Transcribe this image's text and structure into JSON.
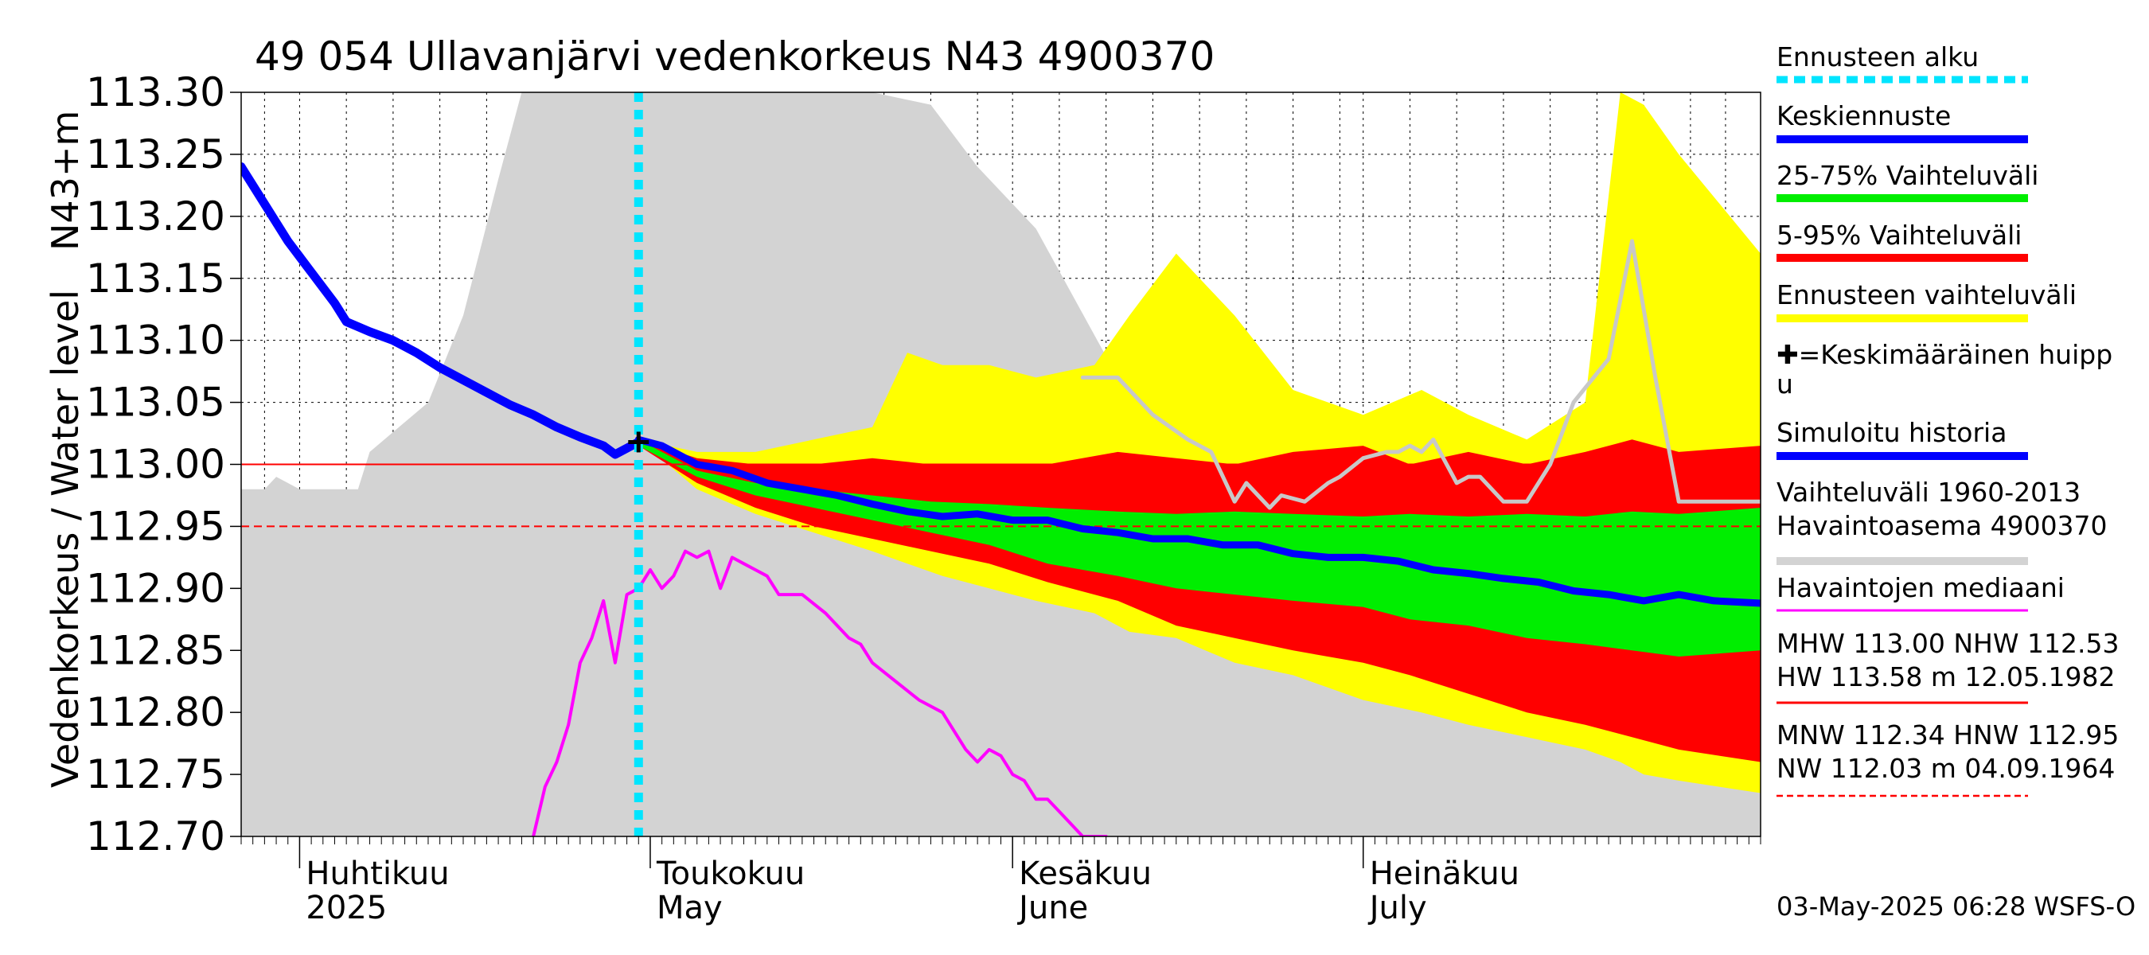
{
  "chart_data": {
    "type": "area",
    "title": "49 054 Ullavanjärvi vedenkorkeus N43 4900370",
    "ylabel": "Vedenkorkeus / Water level",
    "ylabel_unit": "N43+m",
    "ylim": [
      112.7,
      113.3
    ],
    "yticks": [
      "113.30",
      "113.25",
      "113.20",
      "113.15",
      "113.10",
      "113.05",
      "113.00",
      "112.95",
      "112.90",
      "112.85",
      "112.80",
      "112.75",
      "112.70"
    ],
    "x_start": "2025-03-27",
    "x_end": "2025-08-04",
    "months": [
      {
        "date": "2025-04-01",
        "fi": "Huhtikuu",
        "en": "2025"
      },
      {
        "date": "2025-05-01",
        "fi": "Toukokuu",
        "en": "May"
      },
      {
        "date": "2025-06-01",
        "fi": "Kesäkuu",
        "en": "June"
      },
      {
        "date": "2025-07-01",
        "fi": "Heinäkuu",
        "en": "July"
      }
    ],
    "forecast_start": "2025-04-30",
    "reference_lines": [
      {
        "name": "MHW",
        "value": 113.0,
        "style": "solid",
        "color": "#ff0000"
      },
      {
        "name": "HNW",
        "value": 112.95,
        "style": "dashed",
        "color": "#ff0000"
      }
    ],
    "mean_peak": {
      "date": "2025-04-30",
      "value": 113.018
    },
    "history_range": {
      "name": "Vaihteluväli 1960-2013 Havaintoasema 4900370",
      "color": "#d3d3d3",
      "x": [
        "2025-03-27",
        "2025-03-29",
        "2025-03-30",
        "2025-04-01",
        "2025-04-06",
        "2025-04-07",
        "2025-04-12",
        "2025-04-15",
        "2025-04-18",
        "2025-04-20",
        "2025-04-24",
        "2025-05-01",
        "2025-05-10",
        "2025-05-20",
        "2025-05-25",
        "2025-05-29",
        "2025-06-03",
        "2025-06-10",
        "2025-06-15",
        "2025-06-20",
        "2025-07-01",
        "2025-07-10",
        "2025-07-20",
        "2025-08-04"
      ],
      "upper": [
        112.98,
        112.98,
        112.99,
        112.98,
        112.98,
        113.01,
        113.05,
        113.12,
        113.23,
        113.3,
        113.3,
        113.3,
        113.3,
        113.3,
        113.29,
        113.24,
        113.19,
        113.07,
        113.02,
        112.98,
        112.94,
        112.9,
        112.85,
        112.8
      ],
      "lower": [
        112.7,
        112.7,
        112.7,
        112.7,
        112.7,
        112.7,
        112.7,
        112.7,
        112.7,
        112.7,
        112.7,
        112.7,
        112.7,
        112.7,
        112.7,
        112.7,
        112.7,
        112.7,
        112.7,
        112.7,
        112.7,
        112.7,
        112.7,
        112.7
      ]
    },
    "forecast_range": {
      "name": "Ennusteen vaihteluväli",
      "color": "#ffff00",
      "x": [
        "2025-04-30",
        "2025-05-05",
        "2025-05-10",
        "2025-05-15",
        "2025-05-20",
        "2025-05-23",
        "2025-05-26",
        "2025-05-30",
        "2025-06-03",
        "2025-06-08",
        "2025-06-11",
        "2025-06-15",
        "2025-06-20",
        "2025-06-25",
        "2025-07-01",
        "2025-07-06",
        "2025-07-10",
        "2025-07-15",
        "2025-07-20",
        "2025-07-23",
        "2025-07-25",
        "2025-07-28",
        "2025-08-04"
      ],
      "upper": [
        113.02,
        113.01,
        113.01,
        113.02,
        113.03,
        113.09,
        113.08,
        113.08,
        113.07,
        113.08,
        113.12,
        113.17,
        113.12,
        113.06,
        113.04,
        113.06,
        113.04,
        113.02,
        113.05,
        113.3,
        113.29,
        113.25,
        113.17
      ],
      "lower": [
        113.02,
        112.98,
        112.96,
        112.945,
        112.93,
        112.92,
        112.91,
        112.9,
        112.89,
        112.88,
        112.865,
        112.86,
        112.84,
        112.83,
        112.81,
        112.8,
        112.79,
        112.78,
        112.77,
        112.76,
        112.75,
        112.745,
        112.735
      ]
    },
    "band_5_95": {
      "name": "5-95% Vaihteluväli",
      "color": "#ff0000",
      "x": [
        "2025-04-30",
        "2025-05-05",
        "2025-05-10",
        "2025-05-15",
        "2025-05-20",
        "2025-05-25",
        "2025-05-30",
        "2025-06-04",
        "2025-06-10",
        "2025-06-15",
        "2025-06-20",
        "2025-06-25",
        "2025-07-01",
        "2025-07-05",
        "2025-07-10",
        "2025-07-15",
        "2025-07-20",
        "2025-07-24",
        "2025-07-28",
        "2025-08-04"
      ],
      "upper": [
        113.02,
        113.005,
        113.0,
        113.0,
        113.005,
        113.0,
        113.0,
        113.0,
        113.01,
        113.005,
        113.0,
        113.01,
        113.015,
        113.0,
        113.01,
        113.0,
        113.01,
        113.02,
        113.01,
        113.015
      ],
      "lower": [
        113.015,
        112.985,
        112.965,
        112.95,
        112.94,
        112.93,
        112.92,
        112.905,
        112.89,
        112.87,
        112.86,
        112.85,
        112.84,
        112.83,
        112.815,
        112.8,
        112.79,
        112.78,
        112.77,
        112.76
      ]
    },
    "band_25_75": {
      "name": "25-75% Vaihteluväli",
      "color": "#00ee00",
      "x": [
        "2025-04-30",
        "2025-05-05",
        "2025-05-10",
        "2025-05-15",
        "2025-05-20",
        "2025-05-25",
        "2025-05-30",
        "2025-06-04",
        "2025-06-10",
        "2025-06-15",
        "2025-06-20",
        "2025-06-25",
        "2025-07-01",
        "2025-07-05",
        "2025-07-10",
        "2025-07-15",
        "2025-07-20",
        "2025-07-24",
        "2025-07-28",
        "2025-08-04"
      ],
      "upper": [
        113.02,
        112.995,
        112.985,
        112.98,
        112.975,
        112.97,
        112.968,
        112.965,
        112.962,
        112.96,
        112.962,
        112.96,
        112.958,
        112.96,
        112.958,
        112.96,
        112.958,
        112.962,
        112.96,
        112.965
      ],
      "lower": [
        113.015,
        112.99,
        112.975,
        112.965,
        112.955,
        112.945,
        112.935,
        112.92,
        112.91,
        112.9,
        112.895,
        112.89,
        112.885,
        112.875,
        112.87,
        112.86,
        112.855,
        112.85,
        112.845,
        112.85
      ]
    },
    "mean_forecast": {
      "name": "Keskiennuste",
      "color": "#0000ff",
      "x": [
        "2025-04-30",
        "2025-05-02",
        "2025-05-05",
        "2025-05-08",
        "2025-05-11",
        "2025-05-14",
        "2025-05-17",
        "2025-05-20",
        "2025-05-23",
        "2025-05-26",
        "2025-05-29",
        "2025-06-01",
        "2025-06-04",
        "2025-06-07",
        "2025-06-10",
        "2025-06-13",
        "2025-06-16",
        "2025-06-19",
        "2025-06-22",
        "2025-06-25",
        "2025-06-28",
        "2025-07-01",
        "2025-07-04",
        "2025-07-07",
        "2025-07-10",
        "2025-07-13",
        "2025-07-16",
        "2025-07-19",
        "2025-07-22",
        "2025-07-25",
        "2025-07-28",
        "2025-07-31",
        "2025-08-04"
      ],
      "values": [
        113.02,
        113.015,
        113.0,
        112.995,
        112.985,
        112.98,
        112.975,
        112.968,
        112.962,
        112.958,
        112.96,
        112.955,
        112.955,
        112.948,
        112.945,
        112.94,
        112.94,
        112.935,
        112.935,
        112.928,
        112.925,
        112.925,
        112.922,
        112.915,
        112.912,
        112.908,
        112.905,
        112.898,
        112.895,
        112.89,
        112.895,
        112.89,
        112.888
      ]
    },
    "simulated_history": {
      "name": "Simuloitu historia",
      "color": "#0000ff",
      "x": [
        "2025-03-27",
        "2025-03-29",
        "2025-03-31",
        "2025-04-02",
        "2025-04-04",
        "2025-04-05",
        "2025-04-07",
        "2025-04-09",
        "2025-04-11",
        "2025-04-13",
        "2025-04-15",
        "2025-04-17",
        "2025-04-19",
        "2025-04-21",
        "2025-04-23",
        "2025-04-25",
        "2025-04-27",
        "2025-04-28",
        "2025-04-30"
      ],
      "values": [
        113.24,
        113.21,
        113.18,
        113.155,
        113.13,
        113.115,
        113.107,
        113.1,
        113.09,
        113.078,
        113.068,
        113.058,
        113.048,
        113.04,
        113.03,
        113.022,
        113.015,
        113.008,
        113.018
      ]
    },
    "observed_median": {
      "name": "Havaintojen mediaani",
      "color": "#ff00ff",
      "x": [
        "2025-04-21",
        "2025-04-22",
        "2025-04-23",
        "2025-04-24",
        "2025-04-25",
        "2025-04-26",
        "2025-04-27",
        "2025-04-28",
        "2025-04-29",
        "2025-04-30",
        "2025-05-01",
        "2025-05-02",
        "2025-05-03",
        "2025-05-04",
        "2025-05-05",
        "2025-05-06",
        "2025-05-07",
        "2025-05-08",
        "2025-05-09",
        "2025-05-10",
        "2025-05-11",
        "2025-05-12",
        "2025-05-14",
        "2025-05-16",
        "2025-05-17",
        "2025-05-18",
        "2025-05-19",
        "2025-05-20",
        "2025-05-22",
        "2025-05-24",
        "2025-05-26",
        "2025-05-28",
        "2025-05-29",
        "2025-05-30",
        "2025-05-31",
        "2025-06-01",
        "2025-06-02",
        "2025-06-03",
        "2025-06-04",
        "2025-06-05",
        "2025-06-07",
        "2025-06-09"
      ],
      "values": [
        112.7,
        112.74,
        112.76,
        112.79,
        112.84,
        112.86,
        112.89,
        112.84,
        112.895,
        112.9,
        112.915,
        112.9,
        112.91,
        112.93,
        112.925,
        112.93,
        112.9,
        112.925,
        112.92,
        112.915,
        112.91,
        112.895,
        112.895,
        112.88,
        112.87,
        112.86,
        112.855,
        112.84,
        112.825,
        112.81,
        112.8,
        112.77,
        112.76,
        112.77,
        112.765,
        112.75,
        112.745,
        112.73,
        112.73,
        112.72,
        112.7,
        112.7
      ]
    },
    "sim_grey_line": {
      "name": "Vaihteluväli 1960-2013 Havaintoasema 4900370",
      "color": "#c8c8c8",
      "x": [
        "2025-06-07",
        "2025-06-10",
        "2025-06-13",
        "2025-06-16",
        "2025-06-18",
        "2025-06-19",
        "2025-06-20",
        "2025-06-21",
        "2025-06-22",
        "2025-06-23",
        "2025-06-24",
        "2025-06-26",
        "2025-06-28",
        "2025-06-29",
        "2025-07-01",
        "2025-07-03",
        "2025-07-04",
        "2025-07-05",
        "2025-07-06",
        "2025-07-07",
        "2025-07-09",
        "2025-07-10",
        "2025-07-11",
        "2025-07-13",
        "2025-07-15",
        "2025-07-17",
        "2025-07-19",
        "2025-07-22",
        "2025-07-24",
        "2025-07-26",
        "2025-07-28",
        "2025-08-04"
      ],
      "values": [
        113.07,
        113.07,
        113.04,
        113.02,
        113.01,
        112.99,
        112.97,
        112.985,
        112.975,
        112.965,
        112.975,
        112.97,
        112.985,
        112.99,
        113.005,
        113.01,
        113.01,
        113.015,
        113.01,
        113.02,
        112.985,
        112.99,
        112.99,
        112.97,
        112.97,
        113.0,
        113.05,
        113.085,
        113.18,
        113.07,
        112.97,
        112.97
      ]
    },
    "legend": [
      {
        "label": "Ennusteen alku",
        "color": "#00e5ff",
        "kind": "dashed"
      },
      {
        "label": "Keskiennuste",
        "color": "#0000ff",
        "kind": "line"
      },
      {
        "label": "25-75% Vaihteluväli",
        "color": "#00ee00",
        "kind": "line"
      },
      {
        "label": "5-95% Vaihteluväli",
        "color": "#ff0000",
        "kind": "line"
      },
      {
        "label": "Ennusteen vaihteluväli",
        "color": "#ffff00",
        "kind": "line"
      },
      {
        "label": "✚=Keskimääräinen huipp",
        "label2": "u",
        "kind": "text"
      },
      {
        "label": "Simuloitu historia",
        "color": "#0000ff",
        "kind": "line"
      },
      {
        "label": "Vaihteluväli 1960-2013",
        "label2": " Havaintoasema 4900370",
        "color": "#d3d3d3",
        "kind": "line"
      },
      {
        "label": "Havaintojen mediaani",
        "color": "#ff00ff",
        "kind": "thin"
      },
      {
        "label": "MHW 113.00 NHW 112.53",
        "label2": "HW 113.58 m 12.05.1982",
        "color": "#ff0000",
        "kind": "thin"
      },
      {
        "label": "MNW 112.34 HNW 112.95",
        "label2": "NW 112.03 m 04.09.1964",
        "color": "#ff0000",
        "kind": "dashedthin"
      }
    ],
    "footer": "03-May-2025 06:28 WSFS-O"
  }
}
